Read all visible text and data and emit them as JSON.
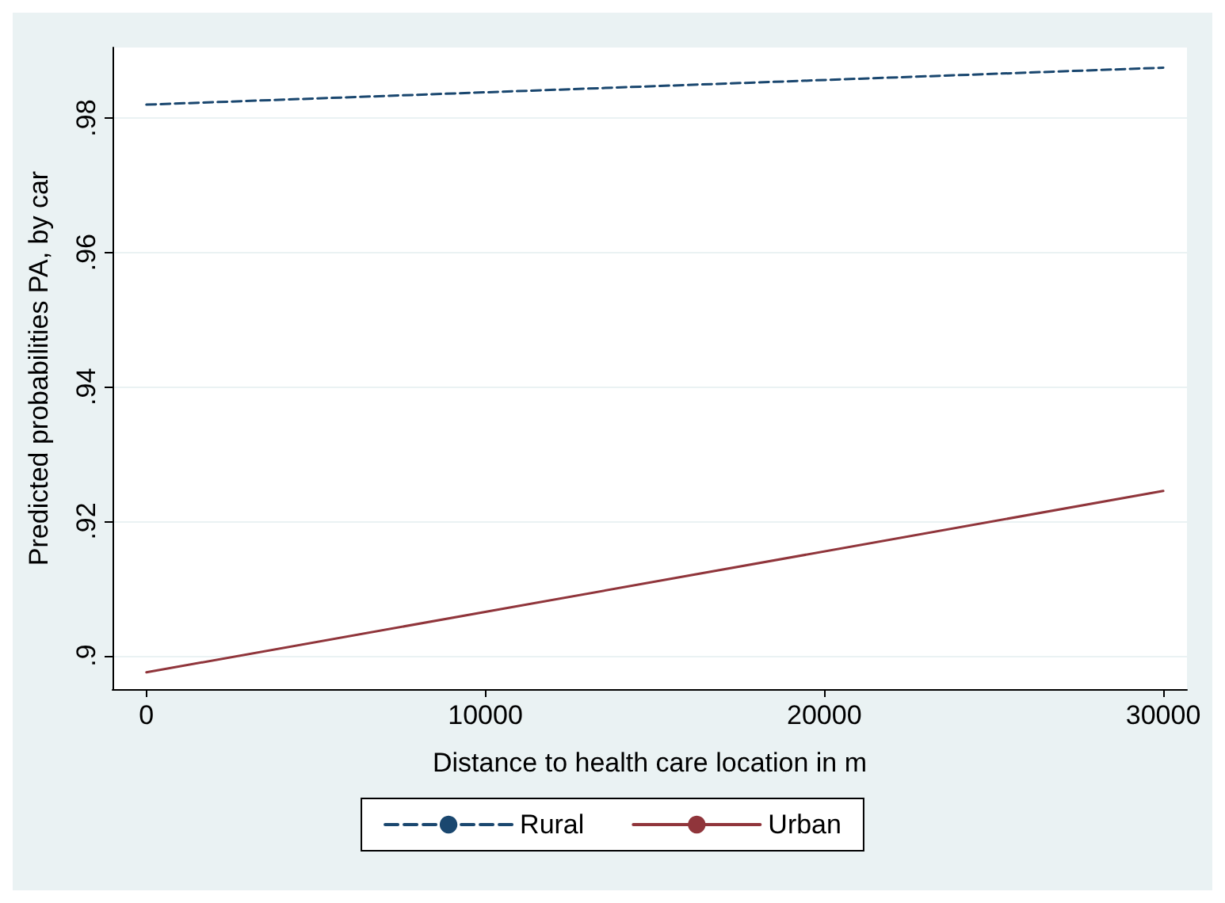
{
  "chart_data": {
    "type": "line",
    "xlabel": "Distance to health care location in m",
    "ylabel": "Predicted probabilities PA, by car",
    "x": [
      0,
      30000
    ],
    "series": [
      {
        "name": "Rural",
        "color": "#1a476f",
        "values": [
          0.982,
          0.9875
        ],
        "line_style": "dashed"
      },
      {
        "name": "Urban",
        "color": "#90353b",
        "values": [
          0.8975,
          0.9245
        ],
        "line_style": "solid"
      }
    ],
    "xlim": [
      -1000,
      30700
    ],
    "xticks": [
      0,
      10000,
      20000,
      30000
    ],
    "ylim": [
      0.895,
      0.9905
    ],
    "yticks": [
      {
        "value": 0.9,
        "label": ".9"
      },
      {
        "value": 0.92,
        "label": ".92"
      },
      {
        "value": 0.94,
        "label": ".94"
      },
      {
        "value": 0.96,
        "label": ".96"
      },
      {
        "value": 0.98,
        "label": ".98"
      }
    ],
    "grid": "y",
    "legend": "bottom",
    "marker": "none"
  }
}
